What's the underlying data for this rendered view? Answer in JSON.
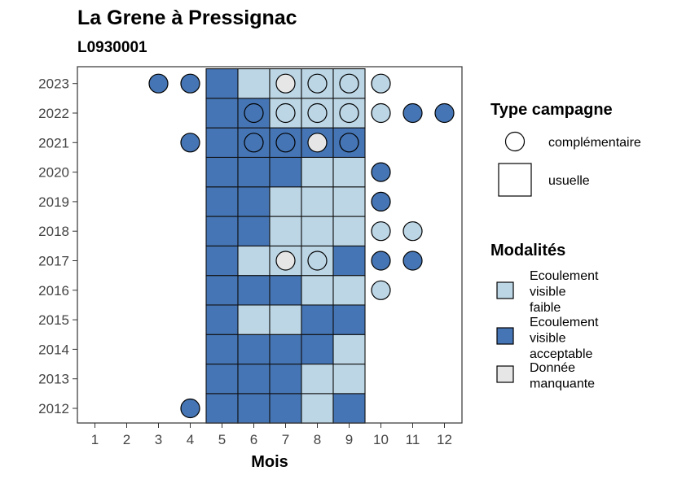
{
  "chart_data": {
    "type": "heatmap",
    "title": "La Grene à Pressignac",
    "subtitle": "L0930001",
    "xlabel": "Mois",
    "ylabel": "",
    "x_categories": [
      "1",
      "2",
      "3",
      "4",
      "5",
      "6",
      "7",
      "8",
      "9",
      "10",
      "11",
      "12"
    ],
    "y_categories": [
      "2012",
      "2013",
      "2014",
      "2015",
      "2016",
      "2017",
      "2018",
      "2019",
      "2020",
      "2021",
      "2022",
      "2023"
    ],
    "grid": false,
    "legend_position": "right",
    "colors": {
      "faible": "#bcd6e6",
      "acceptable": "#4575b4",
      "manquante": "#e6e6e6"
    },
    "legend_type": {
      "title": "Type campagne",
      "items": [
        {
          "shape": "circle",
          "label": "complémentaire"
        },
        {
          "shape": "square",
          "label": "usuelle"
        }
      ]
    },
    "legend_modalites": {
      "title": "Modalités",
      "items": [
        {
          "key": "faible",
          "lines": [
            "Ecoulement",
            "visible",
            "faible"
          ]
        },
        {
          "key": "acceptable",
          "lines": [
            "Ecoulement",
            "visible",
            "acceptable"
          ]
        },
        {
          "key": "manquante",
          "lines": [
            "Donnée",
            "manquante"
          ]
        }
      ]
    },
    "usuelle": {
      "2023": {
        "5": "acceptable",
        "6": "faible",
        "7": "faible",
        "8": "faible",
        "9": "faible"
      },
      "2022": {
        "5": "acceptable",
        "6": "acceptable",
        "7": "faible",
        "8": "faible",
        "9": "faible"
      },
      "2021": {
        "5": "acceptable",
        "6": "acceptable",
        "7": "acceptable",
        "8": "acceptable",
        "9": "acceptable"
      },
      "2020": {
        "5": "acceptable",
        "6": "acceptable",
        "7": "acceptable",
        "8": "faible",
        "9": "faible"
      },
      "2019": {
        "5": "acceptable",
        "6": "acceptable",
        "7": "faible",
        "8": "faible",
        "9": "faible"
      },
      "2018": {
        "5": "acceptable",
        "6": "acceptable",
        "7": "faible",
        "8": "faible",
        "9": "faible"
      },
      "2017": {
        "5": "acceptable",
        "6": "faible",
        "7": "faible",
        "8": "faible",
        "9": "acceptable"
      },
      "2016": {
        "5": "acceptable",
        "6": "acceptable",
        "7": "acceptable",
        "8": "faible",
        "9": "faible"
      },
      "2015": {
        "5": "acceptable",
        "6": "faible",
        "7": "faible",
        "8": "acceptable",
        "9": "acceptable"
      },
      "2014": {
        "5": "acceptable",
        "6": "acceptable",
        "7": "acceptable",
        "8": "acceptable",
        "9": "faible"
      },
      "2013": {
        "5": "acceptable",
        "6": "acceptable",
        "7": "acceptable",
        "8": "faible",
        "9": "faible"
      },
      "2012": {
        "5": "acceptable",
        "6": "acceptable",
        "7": "acceptable",
        "8": "faible",
        "9": "acceptable"
      }
    },
    "complementaire": [
      {
        "year": "2023",
        "month": "3",
        "value": "acceptable"
      },
      {
        "year": "2023",
        "month": "4",
        "value": "acceptable"
      },
      {
        "year": "2023",
        "month": "7",
        "value": "manquante"
      },
      {
        "year": "2023",
        "month": "8",
        "value": "faible"
      },
      {
        "year": "2023",
        "month": "9",
        "value": "faible"
      },
      {
        "year": "2023",
        "month": "10",
        "value": "faible"
      },
      {
        "year": "2022",
        "month": "6",
        "value": "acceptable"
      },
      {
        "year": "2022",
        "month": "7",
        "value": "faible"
      },
      {
        "year": "2022",
        "month": "8",
        "value": "faible"
      },
      {
        "year": "2022",
        "month": "9",
        "value": "faible"
      },
      {
        "year": "2022",
        "month": "10",
        "value": "faible"
      },
      {
        "year": "2022",
        "month": "11",
        "value": "acceptable"
      },
      {
        "year": "2022",
        "month": "12",
        "value": "acceptable"
      },
      {
        "year": "2021",
        "month": "4",
        "value": "acceptable"
      },
      {
        "year": "2021",
        "month": "6",
        "value": "acceptable"
      },
      {
        "year": "2021",
        "month": "7",
        "value": "acceptable"
      },
      {
        "year": "2021",
        "month": "8",
        "value": "manquante"
      },
      {
        "year": "2021",
        "month": "9",
        "value": "acceptable"
      },
      {
        "year": "2020",
        "month": "10",
        "value": "acceptable"
      },
      {
        "year": "2019",
        "month": "10",
        "value": "acceptable"
      },
      {
        "year": "2018",
        "month": "10",
        "value": "faible"
      },
      {
        "year": "2018",
        "month": "11",
        "value": "faible"
      },
      {
        "year": "2017",
        "month": "7",
        "value": "manquante"
      },
      {
        "year": "2017",
        "month": "8",
        "value": "faible"
      },
      {
        "year": "2017",
        "month": "10",
        "value": "acceptable"
      },
      {
        "year": "2017",
        "month": "11",
        "value": "acceptable"
      },
      {
        "year": "2016",
        "month": "10",
        "value": "faible"
      },
      {
        "year": "2012",
        "month": "4",
        "value": "acceptable"
      }
    ]
  }
}
